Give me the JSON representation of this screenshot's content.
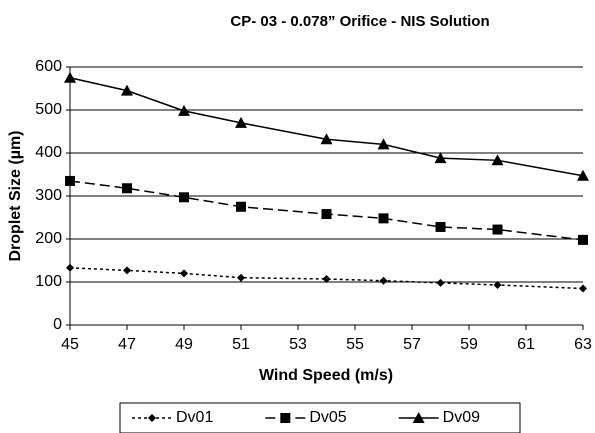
{
  "chart_data": {
    "type": "line",
    "title": "CP- 03 -  0.078” Orifice  -  NIS Solution",
    "x_label": "Wind Speed (m/s)",
    "y_label": "Droplet Size (µm)",
    "x": [
      45,
      47,
      49,
      51,
      54,
      56,
      58,
      60,
      63
    ],
    "series": [
      {
        "name": "Dv01",
        "color": "#000000",
        "line_style": "dotted",
        "marker": "diamond",
        "values": [
          133,
          127,
          120,
          110,
          107,
          103,
          98,
          93,
          85
        ]
      },
      {
        "name": "Dv05",
        "color": "#000000",
        "line_style": "dashed",
        "marker": "square",
        "values": [
          335,
          318,
          297,
          275,
          258,
          248,
          228,
          222,
          198
        ]
      },
      {
        "name": "Dv09",
        "color": "#000000",
        "line_style": "solid",
        "marker": "triangle",
        "values": [
          575,
          545,
          498,
          470,
          432,
          420,
          388,
          383,
          347
        ]
      }
    ],
    "xlim": [
      45,
      63
    ],
    "xticks": [
      45,
      47,
      49,
      51,
      53,
      55,
      57,
      59,
      61,
      63
    ],
    "ylim": [
      0,
      600
    ],
    "yticks": [
      0,
      100,
      200,
      300,
      400,
      500,
      600
    ],
    "grid": true,
    "legend": "bottom"
  }
}
